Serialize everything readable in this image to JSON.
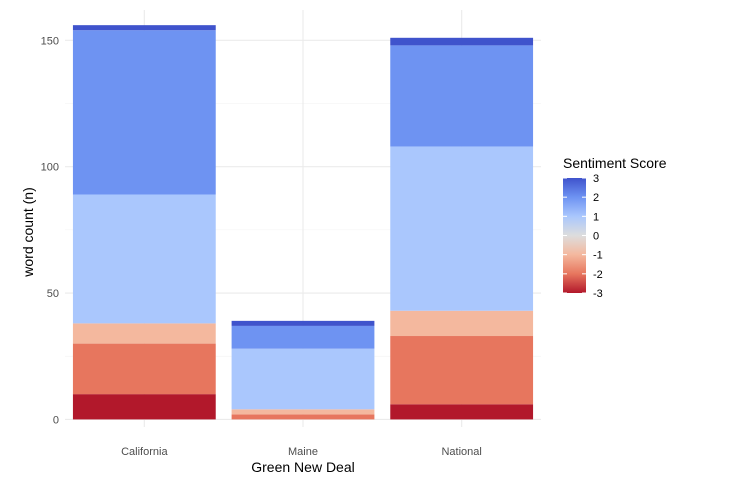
{
  "chart_data": {
    "type": "bar",
    "stacked": true,
    "xlabel": "Green New Deal",
    "ylabel": "word count (n)",
    "ylim": [
      -3,
      162
    ],
    "yticks": [
      0,
      50,
      100,
      150
    ],
    "grid": true,
    "legend": {
      "title": "Sentiment Score",
      "position": "right",
      "ticks": [
        3,
        2,
        1,
        0,
        -1,
        -2,
        -3
      ],
      "colorbar": true
    },
    "color_scale": {
      "-3": "#b2182b",
      "-2": "#e7765e",
      "-1": "#f4b89e",
      "1": "#aac7fd",
      "2": "#6e93f2",
      "3": "#3f53cc",
      "0": "#dddddd"
    },
    "categories": [
      "California",
      "Maine",
      "National"
    ],
    "stacks": [
      {
        "category": "California",
        "segments": [
          {
            "score": -3,
            "value": 10
          },
          {
            "score": -2,
            "value": 20
          },
          {
            "score": -1,
            "value": 8
          },
          {
            "score": 1,
            "value": 51
          },
          {
            "score": 2,
            "value": 65
          },
          {
            "score": 3,
            "value": 2
          }
        ]
      },
      {
        "category": "Maine",
        "segments": [
          {
            "score": -2,
            "value": 2
          },
          {
            "score": -1,
            "value": 2
          },
          {
            "score": 1,
            "value": 24
          },
          {
            "score": 2,
            "value": 9
          },
          {
            "score": 3,
            "value": 2
          }
        ]
      },
      {
        "category": "National",
        "segments": [
          {
            "score": -3,
            "value": 6
          },
          {
            "score": -2,
            "value": 27
          },
          {
            "score": -1,
            "value": 10
          },
          {
            "score": 1,
            "value": 65
          },
          {
            "score": 2,
            "value": 40
          },
          {
            "score": 3,
            "value": 3
          }
        ]
      }
    ]
  }
}
